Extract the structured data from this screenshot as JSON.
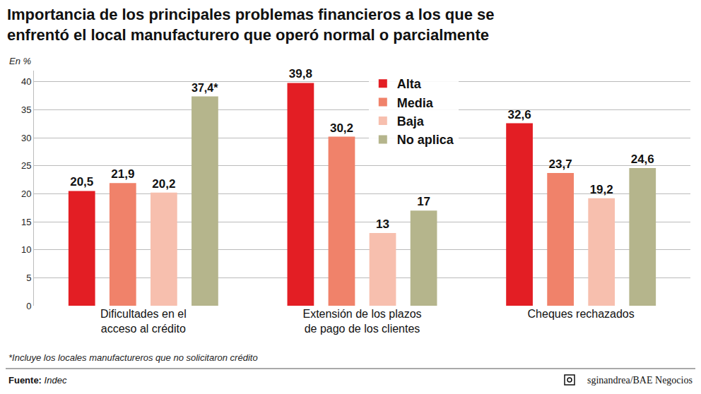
{
  "chart_data": {
    "type": "bar",
    "title": "Importancia de los principales problemas financieros a los que se enfrentó el local manufacturero que operó normal o parcialmente",
    "ylabel": "En %",
    "categories": [
      "Dificultades en el acceso al crédito",
      "Extensión de los plazos de pago de los clientes",
      "Cheques rechazados"
    ],
    "series": [
      {
        "name": "Alta",
        "color": "#e31e24",
        "values": [
          20.5,
          39.8,
          32.6
        ],
        "value_labels": [
          "20,5",
          "39,8",
          "32,6"
        ]
      },
      {
        "name": "Media",
        "color": "#f0826a",
        "values": [
          21.9,
          30.2,
          23.7
        ],
        "value_labels": [
          "21,9",
          "30,2",
          "23,7"
        ]
      },
      {
        "name": "Baja",
        "color": "#f7bfae",
        "values": [
          20.2,
          13,
          19.2
        ],
        "value_labels": [
          "20,2",
          "13",
          "19,2"
        ]
      },
      {
        "name": "No aplica",
        "color": "#b5b58c",
        "values": [
          37.4,
          17,
          24.6
        ],
        "value_labels": [
          "37,4*",
          "17",
          "24,6"
        ]
      }
    ],
    "ylim": [
      0,
      42
    ],
    "yticks": [
      0,
      5,
      10,
      15,
      20,
      25,
      30,
      35,
      40
    ],
    "grid": true,
    "data_labels": true,
    "legend": "upper center",
    "footnote": "*Incluye los locales manufactureros que no solicitaron crédito",
    "source": "Fuente: Indec",
    "credit": "sginandrea/BAE Negocios"
  }
}
